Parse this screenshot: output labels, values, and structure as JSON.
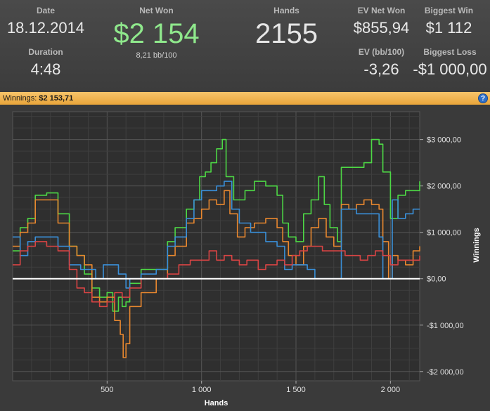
{
  "header": {
    "date_label": "Date",
    "date_value": "18.12.2014",
    "duration_label": "Duration",
    "duration_value": "4:48",
    "net_won_label": "Net Won",
    "net_won_value": "$2 154",
    "net_won_sub": "8,21 bb/100",
    "hands_label": "Hands",
    "hands_value": "2155",
    "ev_net_won_label": "EV Net Won",
    "ev_net_won_value": "$855,94",
    "ev_bb_label": "EV (bb/100)",
    "ev_bb_value": "-3,26",
    "biggest_win_label": "Biggest Win",
    "biggest_win_value": "$1 112",
    "biggest_loss_label": "Biggest Loss",
    "biggest_loss_value": "-$1 000,00"
  },
  "bar": {
    "label": "Winnings:",
    "value": "$2 153,71",
    "help": "?"
  },
  "colors": {
    "green": "#4dd845",
    "orange": "#e8872f",
    "blue": "#3a8fd8",
    "red": "#d84444",
    "zero": "#ffffff"
  },
  "chart_data": {
    "type": "line",
    "xlabel": "Hands",
    "ylabel": "Winnings",
    "xlim": [
      0,
      2155
    ],
    "ylim": [
      -2200,
      3600
    ],
    "x_ticks": [
      500,
      1000,
      1500,
      2000
    ],
    "x_tick_labels": [
      "500",
      "1 000",
      "1 500",
      "2 000"
    ],
    "y_ticks": [
      3000,
      2000,
      1000,
      0,
      -1000,
      -2000
    ],
    "y_tick_labels": [
      "$3 000,00",
      "$2 000,00",
      "$1 000,00",
      "$0,00",
      "-$1 000,00",
      "-$2 000,00"
    ],
    "series": [
      {
        "color": "green",
        "points": [
          [
            0,
            600
          ],
          [
            40,
            1100
          ],
          [
            80,
            1300
          ],
          [
            120,
            1800
          ],
          [
            180,
            1850
          ],
          [
            240,
            1400
          ],
          [
            300,
            700
          ],
          [
            340,
            500
          ],
          [
            380,
            100
          ],
          [
            420,
            -200
          ],
          [
            460,
            -400
          ],
          [
            500,
            -300
          ],
          [
            530,
            -700
          ],
          [
            560,
            -400
          ],
          [
            580,
            -600
          ],
          [
            600,
            -500
          ],
          [
            620,
            -100
          ],
          [
            680,
            200
          ],
          [
            760,
            200
          ],
          [
            820,
            800
          ],
          [
            860,
            1100
          ],
          [
            920,
            1500
          ],
          [
            960,
            1700
          ],
          [
            990,
            2200
          ],
          [
            1020,
            2300
          ],
          [
            1050,
            2500
          ],
          [
            1080,
            2800
          ],
          [
            1110,
            3000
          ],
          [
            1130,
            2200
          ],
          [
            1170,
            1700
          ],
          [
            1230,
            1900
          ],
          [
            1280,
            2100
          ],
          [
            1340,
            2000
          ],
          [
            1400,
            1800
          ],
          [
            1430,
            1200
          ],
          [
            1460,
            900
          ],
          [
            1500,
            800
          ],
          [
            1540,
            1400
          ],
          [
            1580,
            1700
          ],
          [
            1620,
            2200
          ],
          [
            1650,
            1600
          ],
          [
            1680,
            1100
          ],
          [
            1720,
            800
          ],
          [
            1740,
            2400
          ],
          [
            1780,
            2400
          ],
          [
            1820,
            2400
          ],
          [
            1860,
            2500
          ],
          [
            1900,
            3000
          ],
          [
            1940,
            2900
          ],
          [
            1960,
            2300
          ],
          [
            2000,
            1300
          ],
          [
            2040,
            1800
          ],
          [
            2080,
            1900
          ],
          [
            2120,
            1900
          ],
          [
            2155,
            2100
          ]
        ]
      },
      {
        "color": "orange",
        "points": [
          [
            0,
            700
          ],
          [
            40,
            1000
          ],
          [
            80,
            1200
          ],
          [
            120,
            1700
          ],
          [
            180,
            1700
          ],
          [
            240,
            1200
          ],
          [
            300,
            700
          ],
          [
            340,
            500
          ],
          [
            380,
            300
          ],
          [
            420,
            -400
          ],
          [
            460,
            -500
          ],
          [
            500,
            -400
          ],
          [
            540,
            -900
          ],
          [
            570,
            -1200
          ],
          [
            585,
            -1700
          ],
          [
            600,
            -1400
          ],
          [
            620,
            -600
          ],
          [
            680,
            -300
          ],
          [
            760,
            0
          ],
          [
            820,
            500
          ],
          [
            860,
            700
          ],
          [
            920,
            1200
          ],
          [
            960,
            1300
          ],
          [
            1000,
            1500
          ],
          [
            1040,
            1700
          ],
          [
            1080,
            1600
          ],
          [
            1120,
            1900
          ],
          [
            1150,
            1400
          ],
          [
            1190,
            900
          ],
          [
            1230,
            1100
          ],
          [
            1280,
            1200
          ],
          [
            1340,
            1300
          ],
          [
            1400,
            1100
          ],
          [
            1430,
            800
          ],
          [
            1460,
            500
          ],
          [
            1500,
            300
          ],
          [
            1540,
            700
          ],
          [
            1580,
            1100
          ],
          [
            1620,
            1300
          ],
          [
            1660,
            900
          ],
          [
            1700,
            700
          ],
          [
            1740,
            1600
          ],
          [
            1780,
            1500
          ],
          [
            1820,
            1600
          ],
          [
            1860,
            1700
          ],
          [
            1900,
            1600
          ],
          [
            1940,
            1500
          ],
          [
            1960,
            800
          ],
          [
            1990,
            0
          ],
          [
            2010,
            500
          ],
          [
            2040,
            400
          ],
          [
            2080,
            300
          ],
          [
            2120,
            600
          ],
          [
            2155,
            700
          ]
        ]
      },
      {
        "color": "blue",
        "points": [
          [
            0,
            900
          ],
          [
            40,
            500
          ],
          [
            80,
            800
          ],
          [
            120,
            900
          ],
          [
            180,
            900
          ],
          [
            240,
            700
          ],
          [
            300,
            300
          ],
          [
            360,
            200
          ],
          [
            400,
            200
          ],
          [
            440,
            0
          ],
          [
            480,
            300
          ],
          [
            520,
            300
          ],
          [
            560,
            100
          ],
          [
            600,
            -200
          ],
          [
            620,
            0
          ],
          [
            680,
            100
          ],
          [
            760,
            200
          ],
          [
            820,
            700
          ],
          [
            860,
            900
          ],
          [
            920,
            1300
          ],
          [
            960,
            1700
          ],
          [
            1000,
            1900
          ],
          [
            1040,
            1900
          ],
          [
            1080,
            2000
          ],
          [
            1120,
            2100
          ],
          [
            1160,
            1500
          ],
          [
            1200,
            1200
          ],
          [
            1260,
            1000
          ],
          [
            1300,
            1000
          ],
          [
            1340,
            800
          ],
          [
            1400,
            700
          ],
          [
            1440,
            200
          ],
          [
            1480,
            300
          ],
          [
            1520,
            300
          ],
          [
            1560,
            200
          ],
          [
            1600,
            0
          ],
          [
            1640,
            0
          ],
          [
            1680,
            0
          ],
          [
            1720,
            0
          ],
          [
            1740,
            1500
          ],
          [
            1780,
            1500
          ],
          [
            1820,
            1400
          ],
          [
            1860,
            1400
          ],
          [
            1900,
            1400
          ],
          [
            1940,
            900
          ],
          [
            1960,
            0
          ],
          [
            1990,
            0
          ],
          [
            2010,
            1700
          ],
          [
            2040,
            1300
          ],
          [
            2080,
            1400
          ],
          [
            2120,
            1500
          ],
          [
            2155,
            1500
          ]
        ]
      },
      {
        "color": "red",
        "points": [
          [
            0,
            300
          ],
          [
            40,
            600
          ],
          [
            80,
            700
          ],
          [
            120,
            800
          ],
          [
            180,
            700
          ],
          [
            240,
            600
          ],
          [
            300,
            200
          ],
          [
            340,
            -200
          ],
          [
            380,
            -300
          ],
          [
            420,
            -500
          ],
          [
            460,
            -600
          ],
          [
            500,
            -500
          ],
          [
            540,
            -300
          ],
          [
            580,
            -400
          ],
          [
            620,
            -200
          ],
          [
            680,
            0
          ],
          [
            760,
            0
          ],
          [
            820,
            100
          ],
          [
            880,
            300
          ],
          [
            940,
            400
          ],
          [
            1000,
            400
          ],
          [
            1040,
            600
          ],
          [
            1080,
            400
          ],
          [
            1120,
            500
          ],
          [
            1160,
            400
          ],
          [
            1200,
            300
          ],
          [
            1240,
            400
          ],
          [
            1300,
            200
          ],
          [
            1340,
            300
          ],
          [
            1400,
            400
          ],
          [
            1440,
            300
          ],
          [
            1480,
            500
          ],
          [
            1520,
            600
          ],
          [
            1560,
            700
          ],
          [
            1600,
            700
          ],
          [
            1640,
            600
          ],
          [
            1680,
            600
          ],
          [
            1720,
            600
          ],
          [
            1760,
            500
          ],
          [
            1800,
            500
          ],
          [
            1840,
            400
          ],
          [
            1880,
            500
          ],
          [
            1920,
            600
          ],
          [
            1960,
            500
          ],
          [
            2000,
            300
          ],
          [
            2040,
            400
          ],
          [
            2080,
            400
          ],
          [
            2120,
            400
          ],
          [
            2155,
            500
          ]
        ]
      }
    ]
  }
}
